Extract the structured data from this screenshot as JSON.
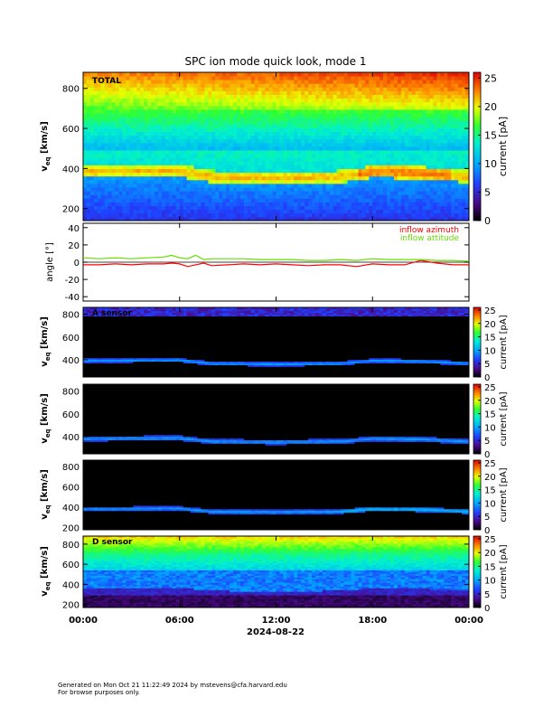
{
  "title": "SPC ion mode quick look, mode 1",
  "date_label": "2024-08-22",
  "time_ticks": [
    "00:00",
    "06:00",
    "12:00",
    "18:00",
    "00:00"
  ],
  "footer": {
    "line1": "Generated on Mon Oct 21 11:22:49 2024 by mstevens@cfa.harvard.edu",
    "line2": "For browse purposes only."
  },
  "chart_data": [
    {
      "type": "heatmap",
      "panel": "total",
      "label": "TOTAL",
      "ylabel": "v_eq [km/s]",
      "ylim": [
        140,
        880
      ],
      "yticks": [
        200,
        400,
        600,
        800
      ],
      "colorbar": {
        "label": "current [pA]",
        "range": [
          0,
          26
        ],
        "ticks": [
          0,
          5,
          10,
          15,
          20,
          25
        ]
      },
      "profile": {
        "peak_velocity": [
          [
            0,
            385
          ],
          [
            6,
            390
          ],
          [
            8,
            360
          ],
          [
            12,
            355
          ],
          [
            16,
            360
          ],
          [
            18,
            385
          ],
          [
            21,
            380
          ],
          [
            24,
            360
          ]
        ]
      }
    },
    {
      "type": "line",
      "panel": "angle",
      "ylabel": "angle [°]",
      "ylim": [
        -45,
        45
      ],
      "yticks": [
        -40,
        -20,
        0,
        20,
        40
      ],
      "x": [
        0,
        1,
        2,
        3,
        4,
        5,
        5.5,
        6,
        6.5,
        7,
        7.5,
        8,
        9,
        10,
        11,
        12,
        13,
        14,
        15,
        16,
        17,
        18,
        19,
        20,
        21,
        22,
        23,
        24
      ],
      "series": [
        {
          "name": "inflow azimuth",
          "color": "#ff0000",
          "values": [
            -3,
            -3,
            -2,
            -3,
            -2,
            -2,
            -1,
            -2,
            -5,
            -3,
            -1,
            -4,
            -3,
            -2,
            -3,
            -2,
            -3,
            -4,
            -3,
            -3,
            -5,
            -2,
            -3,
            -3,
            2,
            -1,
            -3,
            -3
          ]
        },
        {
          "name": "inflow attitude",
          "color": "#66dd00",
          "values": [
            5,
            4,
            5,
            4,
            5,
            6,
            8,
            5,
            4,
            8,
            3,
            4,
            4,
            4,
            3,
            3,
            3,
            2,
            2,
            3,
            2,
            4,
            3,
            3,
            3,
            2,
            2,
            1
          ]
        }
      ]
    },
    {
      "type": "heatmap",
      "panel": "a_sensor",
      "label": "A sensor",
      "ylabel": "v_eq [km/s]",
      "ylim": [
        250,
        860
      ],
      "yticks": [
        400,
        600,
        800
      ],
      "colorbar": {
        "label": "current [pA]",
        "range": [
          0,
          26
        ],
        "ticks": [
          0,
          5,
          10,
          15,
          20,
          25
        ]
      }
    },
    {
      "type": "heatmap",
      "panel": "b_sensor",
      "label": "",
      "ylabel": "v_eq [km/s]",
      "ylim": [
        250,
        860
      ],
      "yticks": [
        400,
        600,
        800
      ],
      "colorbar": {
        "label": "current [pA]",
        "range": [
          0,
          26
        ],
        "ticks": [
          0,
          5,
          10,
          15,
          20,
          25
        ]
      }
    },
    {
      "type": "heatmap",
      "panel": "c_sensor",
      "label": "",
      "ylabel": "v_eq [km/s]",
      "ylim": [
        180,
        860
      ],
      "yticks": [
        200,
        400,
        600,
        800
      ],
      "colorbar": {
        "label": "current [pA]",
        "range": [
          0,
          26
        ],
        "ticks": [
          0,
          5,
          10,
          15,
          20,
          25
        ]
      }
    },
    {
      "type": "heatmap",
      "panel": "d_sensor",
      "label": "D sensor",
      "ylabel": "v_eq [km/s]",
      "ylim": [
        170,
        880
      ],
      "yticks": [
        200,
        400,
        600,
        800
      ],
      "colorbar": {
        "label": "current [pA]",
        "range": [
          0,
          26
        ],
        "ticks": [
          0,
          5,
          10,
          15,
          20,
          25
        ]
      }
    }
  ]
}
